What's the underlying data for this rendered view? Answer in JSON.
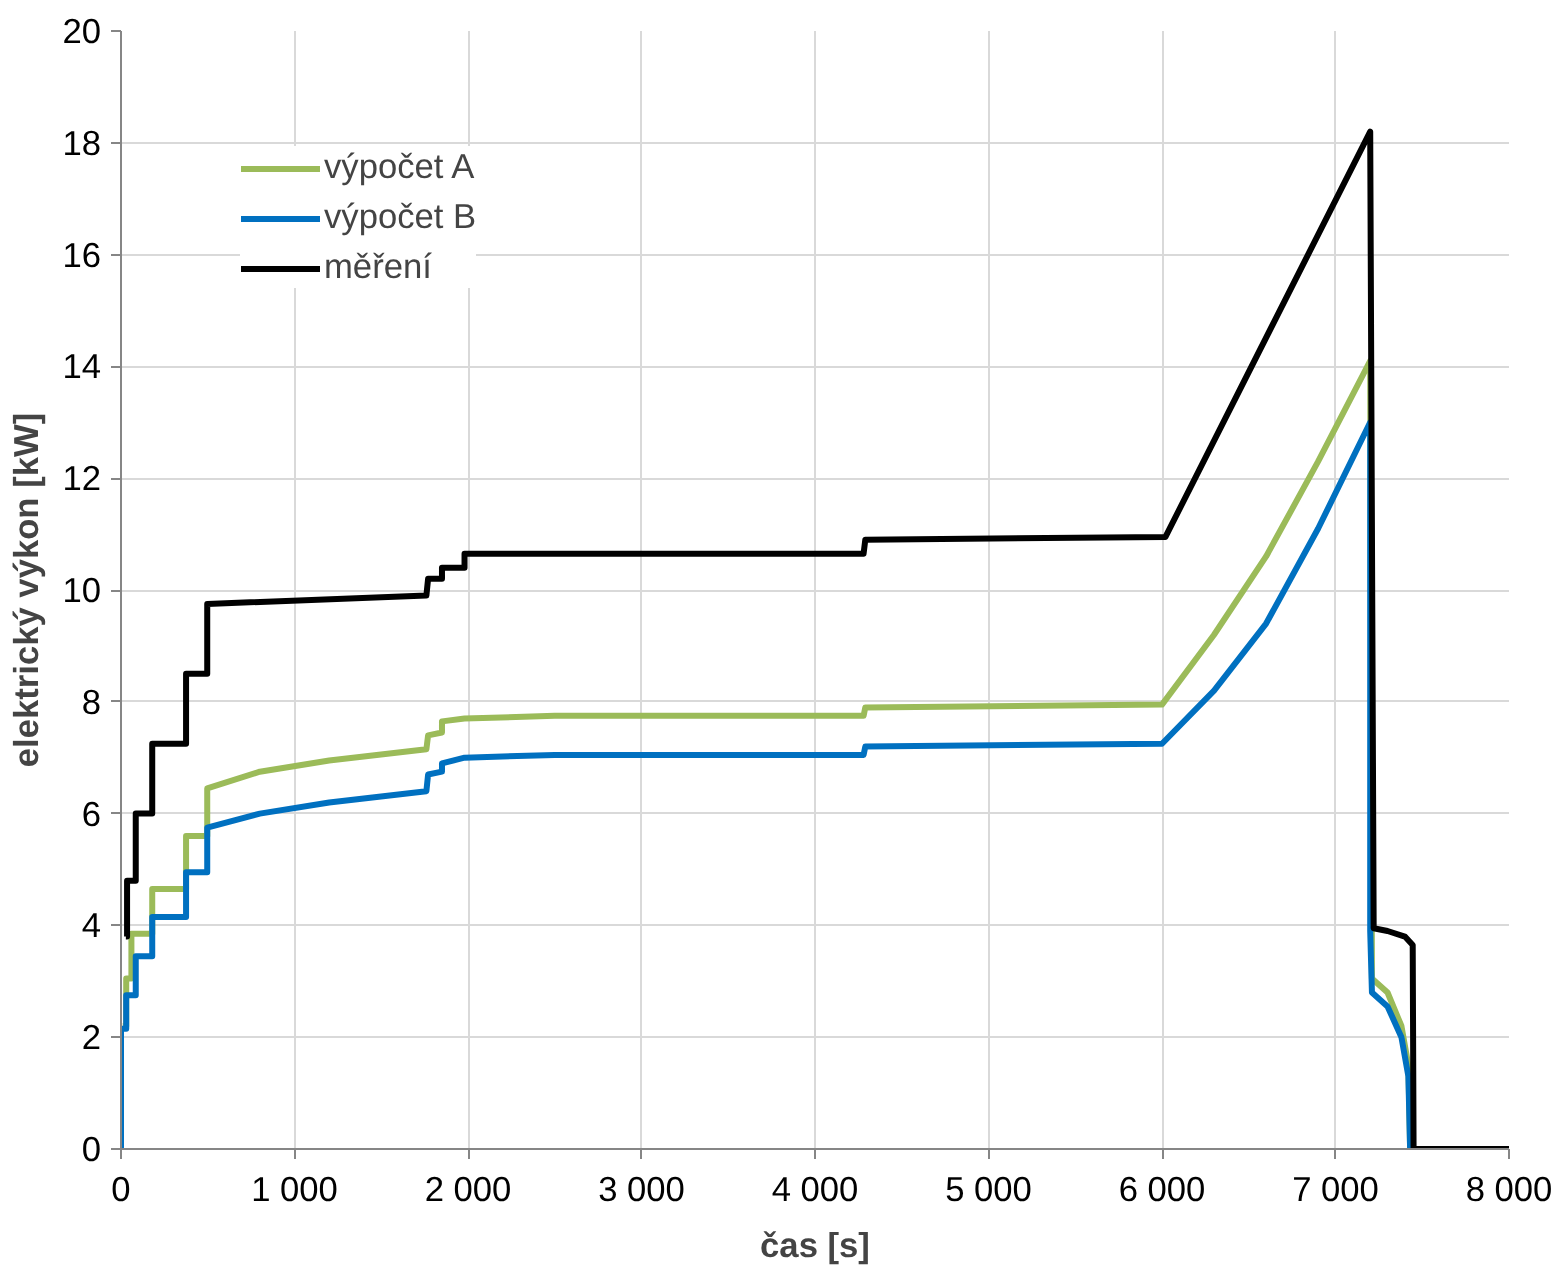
{
  "chart_data": {
    "type": "line",
    "xlabel": "čas [s]",
    "ylabel": "elektrický výkon [kW]",
    "xlim": [
      0,
      8000
    ],
    "ylim": [
      0,
      20
    ],
    "xticks": [
      0,
      {
        "value": 1000,
        "label": "1 000"
      },
      {
        "value": 2000,
        "label": "2 000"
      },
      {
        "value": 3000,
        "label": "3 000"
      },
      {
        "value": 4000,
        "label": "4 000"
      },
      {
        "value": 5000,
        "label": "5 000"
      },
      {
        "value": 6000,
        "label": "6 000"
      },
      {
        "value": 7000,
        "label": "7 000"
      },
      {
        "value": 8000,
        "label": "8 000"
      }
    ],
    "yticks": [
      0,
      2,
      4,
      6,
      8,
      10,
      12,
      14,
      16,
      18,
      20
    ],
    "grid": true,
    "legend": "top left",
    "series": [
      {
        "name": "výpočet A",
        "color": "#9bbb59",
        "x": [
          10,
          30,
          30,
          60,
          60,
          180,
          180,
          375,
          375,
          497,
          497,
          800,
          1200,
          1760,
          1770,
          1850,
          1850,
          1980,
          2500,
          4280,
          4290,
          6000,
          6300,
          6600,
          6900,
          7200,
          7210,
          7300,
          7380,
          7420,
          7430
        ],
        "values": [
          2.2,
          2.2,
          3.05,
          3.05,
          3.85,
          3.85,
          4.65,
          4.65,
          5.6,
          5.6,
          6.45,
          6.75,
          6.95,
          7.15,
          7.4,
          7.45,
          7.65,
          7.7,
          7.75,
          7.75,
          7.9,
          7.95,
          9.2,
          10.6,
          12.3,
          14.1,
          3.05,
          2.8,
          2.2,
          1.5,
          0
        ]
      },
      {
        "name": "výpočet B",
        "color": "#0070c0",
        "x": [
          0,
          0,
          30,
          30,
          85,
          85,
          180,
          180,
          375,
          375,
          497,
          497,
          800,
          1200,
          1760,
          1770,
          1850,
          1850,
          1980,
          2500,
          4280,
          4290,
          6000,
          6300,
          6600,
          6900,
          7200,
          7200,
          7210,
          7300,
          7380,
          7420,
          7430
        ],
        "values": [
          0,
          2.15,
          2.15,
          2.75,
          2.75,
          3.45,
          3.45,
          4.15,
          4.15,
          4.95,
          4.95,
          5.75,
          6.0,
          6.2,
          6.4,
          6.7,
          6.75,
          6.9,
          7.0,
          7.05,
          7.05,
          7.2,
          7.25,
          8.2,
          9.4,
          11.1,
          13.0,
          3.9,
          2.8,
          2.55,
          2.0,
          1.3,
          0
        ]
      },
      {
        "name": "měření",
        "color": "#000000",
        "x": [
          28,
          35,
          35,
          85,
          85,
          180,
          180,
          375,
          375,
          497,
          497,
          1760,
          1770,
          1850,
          1850,
          1980,
          1980,
          4280,
          4290,
          6020,
          7200,
          7220,
          7300,
          7400,
          7445,
          7450,
          8000
        ],
        "values": [
          3.8,
          3.8,
          4.8,
          4.8,
          6.0,
          6.0,
          7.25,
          7.25,
          8.5,
          8.5,
          9.75,
          9.9,
          10.2,
          10.2,
          10.4,
          10.4,
          10.65,
          10.65,
          10.9,
          10.95,
          18.2,
          3.95,
          3.9,
          3.8,
          3.65,
          0,
          0
        ]
      }
    ]
  }
}
